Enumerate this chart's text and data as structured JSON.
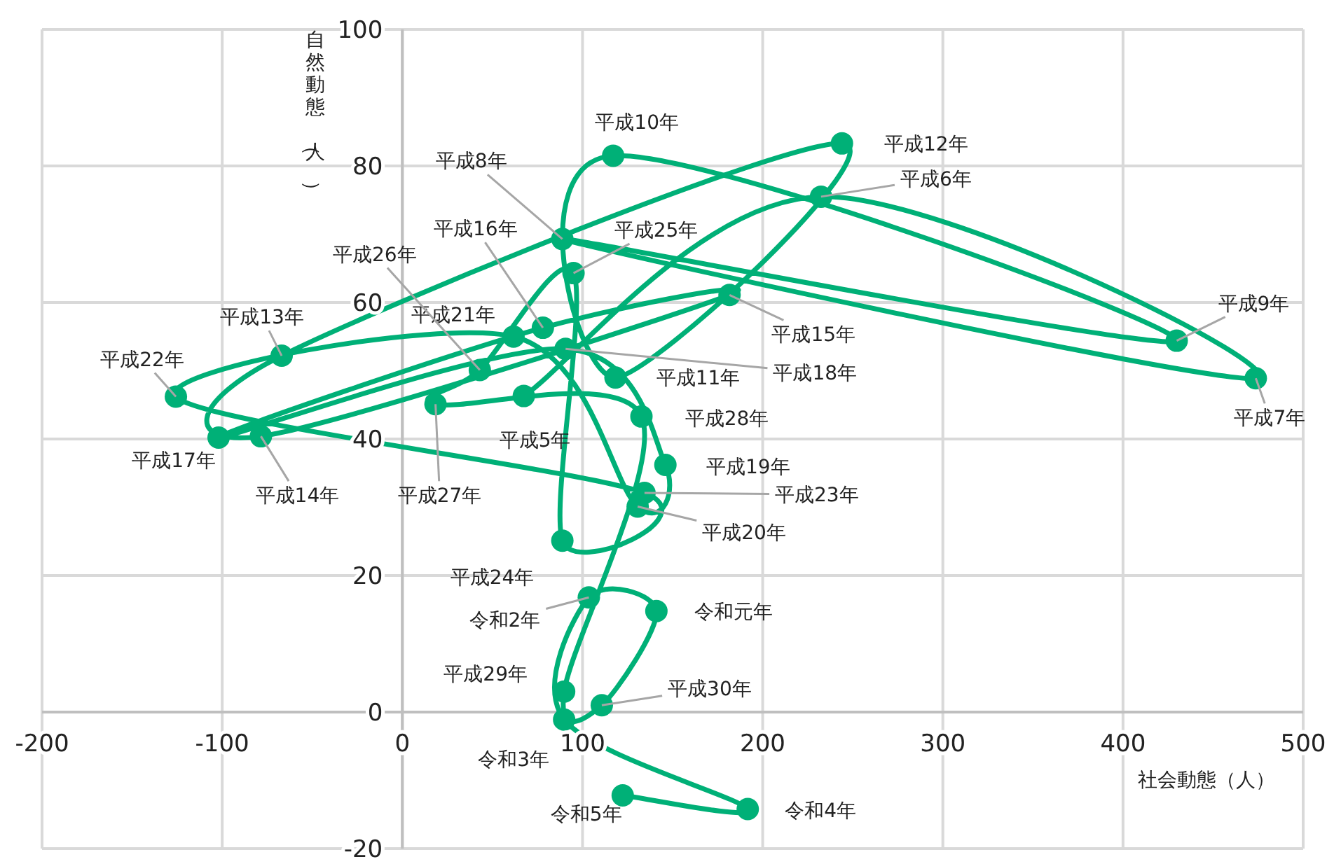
{
  "chart_data": {
    "type": "line",
    "xlabel": "社会動態（人）",
    "ylabel": "自然動態（人）",
    "x": [
      67.4,
      232.4,
      473.7,
      88.8,
      429.8,
      117,
      118.3,
      244,
      -67,
      -78.5,
      181.6,
      78,
      -102,
      90.6,
      146,
      130.6,
      61.7,
      -125.7,
      134.4,
      88.8,
      95,
      43,
      18.4,
      132.7,
      89.8,
      110.7,
      141,
      103.5,
      89.8,
      191.7,
      122.3
    ],
    "values": [
      46.3,
      75.5,
      48.9,
      69.3,
      54.4,
      81.5,
      49,
      83.3,
      52.2,
      40.4,
      61.1,
      56.3,
      40.2,
      53.2,
      36.2,
      30.1,
      55,
      46.2,
      32.1,
      25.1,
      64.3,
      50.1,
      45.1,
      43.3,
      3,
      1,
      14.8,
      16.8,
      -1.1,
      -14.2,
      -12.2
    ],
    "color": "#00b077",
    "marker": "circle",
    "grid": true,
    "xlim": [
      -200,
      500
    ],
    "ylim": [
      -20,
      100
    ],
    "xticks": [
      -200,
      -100,
      0,
      100,
      200,
      300,
      400,
      500
    ],
    "yticks": [
      -20,
      0,
      20,
      40,
      60,
      80,
      100
    ],
    "annotations": [
      {
        "text": "平成5年",
        "x": 67.4,
        "y": 46.3
      },
      {
        "text": "平成6年",
        "x": 232.4,
        "y": 75.5
      },
      {
        "text": "平成7年",
        "x": 473.7,
        "y": 48.9
      },
      {
        "text": "平成8年",
        "x": 88.8,
        "y": 69.3
      },
      {
        "text": "平成9年",
        "x": 429.8,
        "y": 54.4
      },
      {
        "text": "平成10年",
        "x": 117,
        "y": 81.5
      },
      {
        "text": "平成11年",
        "x": 118.3,
        "y": 49
      },
      {
        "text": "平成12年",
        "x": 244,
        "y": 83.3
      },
      {
        "text": "平成13年",
        "x": -67,
        "y": 52.2
      },
      {
        "text": "平成14年",
        "x": -78.5,
        "y": 40.4
      },
      {
        "text": "平成15年",
        "x": 181.6,
        "y": 61.1
      },
      {
        "text": "平成16年",
        "x": 78,
        "y": 56.3
      },
      {
        "text": "平成17年",
        "x": -102,
        "y": 40.2
      },
      {
        "text": "平成18年",
        "x": 90.6,
        "y": 53.2
      },
      {
        "text": "平成19年",
        "x": 146,
        "y": 36.2
      },
      {
        "text": "平成20年",
        "x": 130.6,
        "y": 30.1
      },
      {
        "text": "平成21年",
        "x": 61.7,
        "y": 55
      },
      {
        "text": "平成22年",
        "x": -125.7,
        "y": 46.2
      },
      {
        "text": "平成23年",
        "x": 134.4,
        "y": 32.1
      },
      {
        "text": "平成24年",
        "x": 88.8,
        "y": 25.1
      },
      {
        "text": "平成25年",
        "x": 95,
        "y": 64.3
      },
      {
        "text": "平成26年",
        "x": 43,
        "y": 50.1
      },
      {
        "text": "平成27年",
        "x": 18.4,
        "y": 45.1
      },
      {
        "text": "平成28年",
        "x": 132.7,
        "y": 43.3
      },
      {
        "text": "平成29年",
        "x": 89.8,
        "y": 3
      },
      {
        "text": "平成30年",
        "x": 110.7,
        "y": 1
      },
      {
        "text": "令和元年",
        "x": 141,
        "y": 14.8
      },
      {
        "text": "令和2年",
        "x": 103.5,
        "y": 16.8
      },
      {
        "text": "令和3年",
        "x": 89.8,
        "y": -1.1
      },
      {
        "text": "令和4年",
        "x": 191.7,
        "y": -14.2
      },
      {
        "text": "令和5年",
        "x": 122.3,
        "y": -12.2
      }
    ]
  }
}
